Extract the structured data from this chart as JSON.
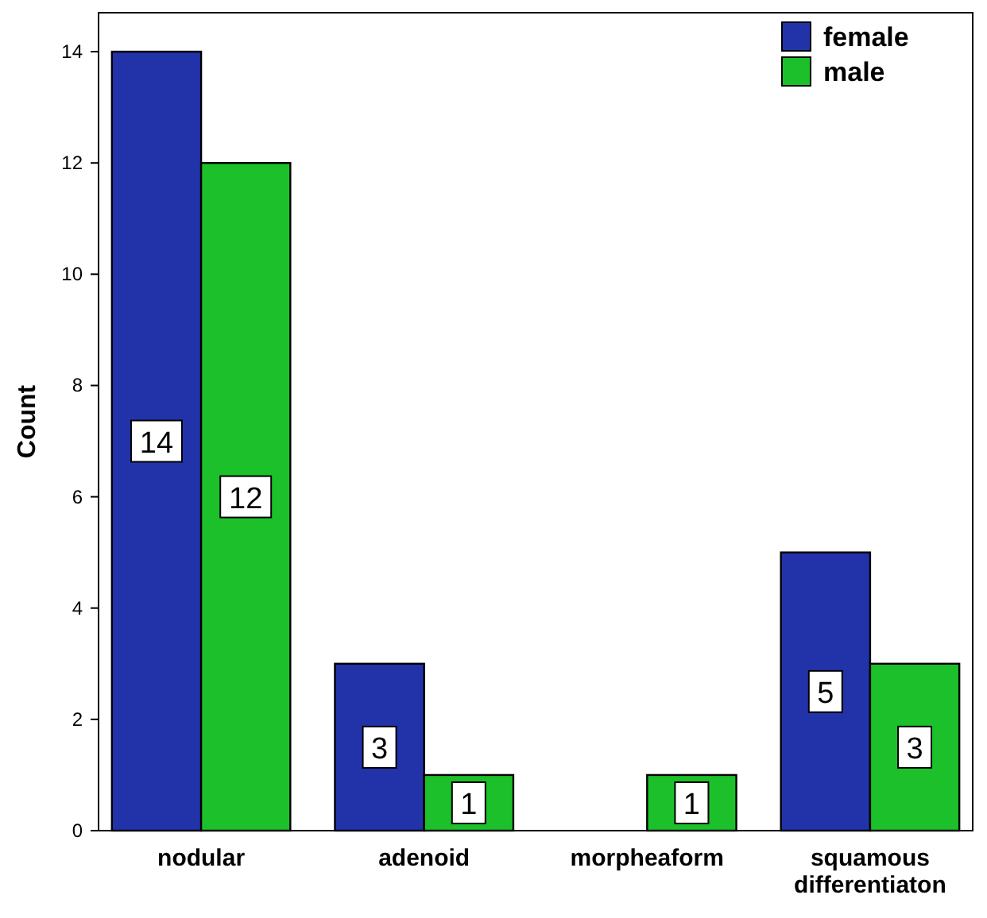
{
  "chart_data": {
    "type": "bar",
    "ylabel": "Count",
    "categories": [
      "nodular",
      "adenoid",
      "morpheaform",
      "squamous differentiaton"
    ],
    "series": [
      {
        "name": "female",
        "color": "#2233aa",
        "values": [
          14,
          3,
          0,
          5
        ],
        "value_labels": [
          "14",
          "3",
          null,
          "5"
        ]
      },
      {
        "name": "male",
        "color": "#1cc02a",
        "values": [
          12,
          1,
          1,
          3
        ],
        "value_labels": [
          "12",
          "1",
          "1",
          "3"
        ]
      }
    ],
    "ylim": [
      0,
      14.7
    ],
    "yticks": [
      0,
      2,
      4,
      6,
      8,
      10,
      12,
      14
    ],
    "grid": false,
    "legend": "top right"
  }
}
